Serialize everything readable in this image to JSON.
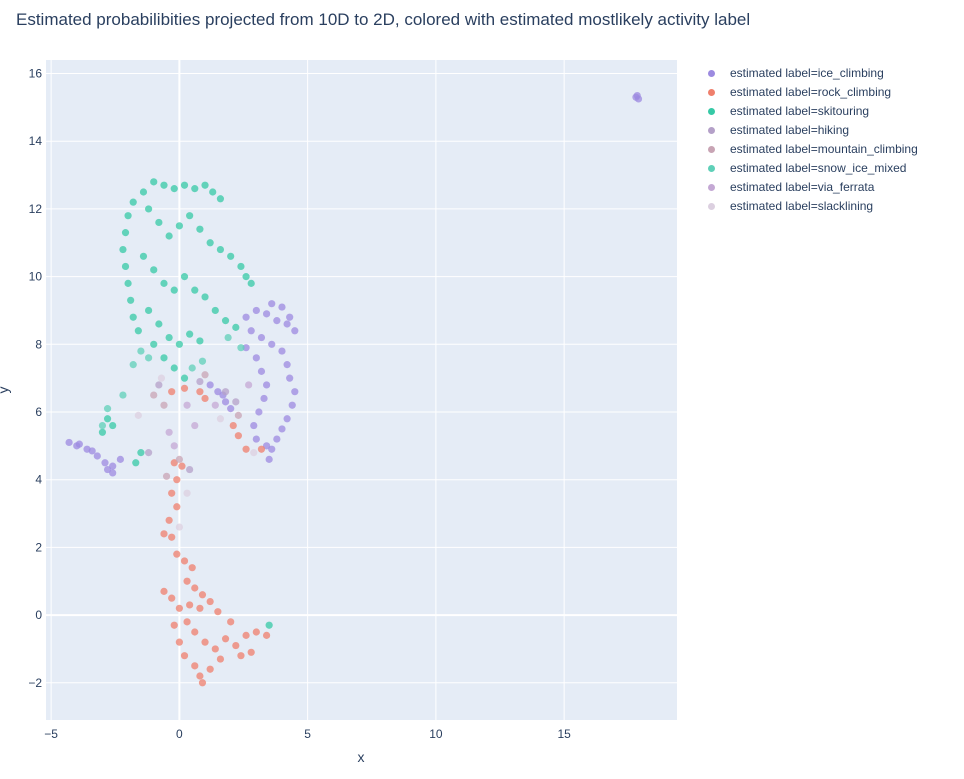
{
  "chart_data": {
    "type": "scatter",
    "title": "Estimated probabilibities projected from 10D to 2D, colored with estimated mostlikely activity label",
    "xlabel": "x",
    "ylabel": "y",
    "xlim": [
      -5.2,
      19.4
    ],
    "ylim": [
      -3.1,
      16.4
    ],
    "xticks": [
      -5,
      0,
      5,
      10,
      15
    ],
    "yticks": [
      -2,
      0,
      2,
      4,
      6,
      8,
      10,
      12,
      14,
      16
    ],
    "grid": true,
    "legend_position": "right",
    "series": [
      {
        "name": "estimated label=ice_climbing",
        "color": "#9c8ae0",
        "points": [
          [
            17.8,
            15.3
          ],
          [
            17.9,
            15.25
          ],
          [
            17.85,
            15.35
          ],
          [
            -4.3,
            5.1
          ],
          [
            -4.0,
            5.0
          ],
          [
            -3.6,
            4.9
          ],
          [
            -3.2,
            4.7
          ],
          [
            -2.9,
            4.5
          ],
          [
            -2.6,
            4.4
          ],
          [
            -2.3,
            4.6
          ],
          [
            -2.6,
            4.2
          ],
          [
            -2.8,
            4.3
          ],
          [
            -3.9,
            5.05
          ],
          [
            -3.4,
            4.85
          ],
          [
            1.2,
            6.8
          ],
          [
            1.5,
            6.6
          ],
          [
            1.8,
            6.3
          ],
          [
            2.0,
            6.1
          ],
          [
            1.7,
            6.5
          ],
          [
            2.6,
            8.8
          ],
          [
            3.0,
            9.0
          ],
          [
            3.4,
            8.9
          ],
          [
            3.8,
            8.7
          ],
          [
            4.2,
            8.6
          ],
          [
            4.5,
            8.4
          ],
          [
            4.3,
            8.8
          ],
          [
            4.0,
            9.1
          ],
          [
            3.6,
            9.2
          ],
          [
            3.2,
            8.2
          ],
          [
            3.6,
            8.0
          ],
          [
            4.0,
            7.8
          ],
          [
            4.2,
            7.4
          ],
          [
            4.3,
            7.0
          ],
          [
            4.5,
            6.6
          ],
          [
            4.4,
            6.2
          ],
          [
            4.2,
            5.8
          ],
          [
            4.0,
            5.5
          ],
          [
            3.8,
            5.2
          ],
          [
            3.6,
            4.9
          ],
          [
            3.5,
            4.6
          ],
          [
            3.0,
            7.6
          ],
          [
            3.2,
            7.2
          ],
          [
            3.4,
            6.8
          ],
          [
            3.3,
            6.4
          ],
          [
            3.1,
            6.0
          ],
          [
            2.9,
            5.6
          ],
          [
            3.0,
            5.2
          ],
          [
            3.4,
            5.0
          ],
          [
            2.8,
            8.4
          ],
          [
            2.6,
            7.9
          ]
        ]
      },
      {
        "name": "estimated label=rock_climbing",
        "color": "#ef7f6c",
        "points": [
          [
            -0.2,
            4.5
          ],
          [
            0.1,
            4.4
          ],
          [
            -0.1,
            4.0
          ],
          [
            -0.3,
            3.6
          ],
          [
            -0.1,
            3.2
          ],
          [
            -0.4,
            2.8
          ],
          [
            -0.6,
            2.4
          ],
          [
            -0.3,
            2.3
          ],
          [
            -0.1,
            1.8
          ],
          [
            0.2,
            1.6
          ],
          [
            0.5,
            1.4
          ],
          [
            0.3,
            1.0
          ],
          [
            0.6,
            0.8
          ],
          [
            0.9,
            0.6
          ],
          [
            1.2,
            0.4
          ],
          [
            0.8,
            0.2
          ],
          [
            0.4,
            0.3
          ],
          [
            -0.6,
            0.7
          ],
          [
            -0.3,
            0.5
          ],
          [
            0.0,
            0.2
          ],
          [
            0.3,
            -0.2
          ],
          [
            0.6,
            -0.5
          ],
          [
            1.0,
            -0.8
          ],
          [
            1.4,
            -1.0
          ],
          [
            1.8,
            -0.7
          ],
          [
            2.2,
            -0.9
          ],
          [
            2.6,
            -0.6
          ],
          [
            3.0,
            -0.5
          ],
          [
            3.4,
            -0.6
          ],
          [
            1.6,
            -1.3
          ],
          [
            1.2,
            -1.6
          ],
          [
            0.8,
            -1.8
          ],
          [
            0.6,
            -1.5
          ],
          [
            0.9,
            -2.0
          ],
          [
            0.2,
            -1.2
          ],
          [
            0.0,
            -0.8
          ],
          [
            -0.2,
            -0.3
          ],
          [
            1.5,
            0.1
          ],
          [
            2.0,
            -0.2
          ],
          [
            2.4,
            -1.2
          ],
          [
            2.8,
            -1.1
          ],
          [
            -0.3,
            6.6
          ],
          [
            0.2,
            6.7
          ],
          [
            0.8,
            6.6
          ],
          [
            1.0,
            6.4
          ],
          [
            2.1,
            5.6
          ],
          [
            2.3,
            5.3
          ],
          [
            2.6,
            4.9
          ],
          [
            3.2,
            4.9
          ]
        ]
      },
      {
        "name": "estimated label=skitouring",
        "color": "#36c9a6",
        "points": [
          [
            -1.0,
            12.8
          ],
          [
            -0.6,
            12.7
          ],
          [
            -0.2,
            12.6
          ],
          [
            0.2,
            12.7
          ],
          [
            0.6,
            12.6
          ],
          [
            1.0,
            12.7
          ],
          [
            1.3,
            12.5
          ],
          [
            1.6,
            12.3
          ],
          [
            -1.4,
            12.5
          ],
          [
            -1.8,
            12.2
          ],
          [
            -2.0,
            11.8
          ],
          [
            -2.1,
            11.3
          ],
          [
            -2.2,
            10.8
          ],
          [
            -2.1,
            10.3
          ],
          [
            -2.0,
            9.8
          ],
          [
            -1.9,
            9.3
          ],
          [
            -1.8,
            8.8
          ],
          [
            -1.6,
            8.4
          ],
          [
            -1.2,
            12.0
          ],
          [
            -0.8,
            11.6
          ],
          [
            -0.4,
            11.2
          ],
          [
            0.0,
            11.5
          ],
          [
            0.4,
            11.8
          ],
          [
            0.8,
            11.4
          ],
          [
            1.2,
            11.0
          ],
          [
            1.6,
            10.8
          ],
          [
            2.0,
            10.6
          ],
          [
            2.4,
            10.3
          ],
          [
            2.6,
            10.0
          ],
          [
            2.8,
            9.8
          ],
          [
            -1.4,
            10.6
          ],
          [
            -1.0,
            10.2
          ],
          [
            -0.6,
            9.8
          ],
          [
            -0.2,
            9.6
          ],
          [
            0.2,
            10.0
          ],
          [
            0.6,
            9.6
          ],
          [
            1.0,
            9.4
          ],
          [
            1.4,
            9.0
          ],
          [
            1.8,
            8.7
          ],
          [
            2.2,
            8.5
          ],
          [
            -1.2,
            9.0
          ],
          [
            -0.8,
            8.6
          ],
          [
            -0.4,
            8.2
          ],
          [
            0.0,
            8.0
          ],
          [
            0.4,
            8.3
          ],
          [
            0.8,
            8.1
          ],
          [
            -1.0,
            8.0
          ],
          [
            -0.6,
            7.6
          ],
          [
            -0.2,
            7.3
          ],
          [
            0.2,
            7.0
          ],
          [
            -2.6,
            5.6
          ],
          [
            -3.0,
            5.4
          ],
          [
            -2.8,
            5.8
          ],
          [
            -1.5,
            4.8
          ],
          [
            -1.7,
            4.5
          ],
          [
            3.5,
            -0.3
          ]
        ]
      },
      {
        "name": "estimated label=hiking",
        "color": "#b4a0c8",
        "points": [
          [
            1.8,
            6.6
          ],
          [
            2.2,
            6.3
          ],
          [
            0.8,
            6.9
          ],
          [
            -0.8,
            6.8
          ],
          [
            0.4,
            4.3
          ],
          [
            -1.2,
            4.8
          ]
        ]
      },
      {
        "name": "estimated label=mountain_climbing",
        "color": "#c8a4b4",
        "points": [
          [
            -1.0,
            6.5
          ],
          [
            -0.6,
            6.2
          ],
          [
            0.0,
            4.6
          ],
          [
            -0.5,
            4.1
          ],
          [
            2.3,
            5.9
          ],
          [
            1.0,
            7.1
          ]
        ]
      },
      {
        "name": "estimated label=snow_ice_mixed",
        "color": "#5fd0b8",
        "points": [
          [
            -1.5,
            7.8
          ],
          [
            -1.8,
            7.4
          ],
          [
            -1.2,
            7.6
          ],
          [
            0.5,
            7.3
          ],
          [
            0.9,
            7.5
          ],
          [
            -2.2,
            6.5
          ],
          [
            -2.8,
            6.1
          ],
          [
            -3.0,
            5.6
          ],
          [
            1.9,
            8.2
          ],
          [
            2.4,
            7.9
          ]
        ]
      },
      {
        "name": "estimated label=via_ferrata",
        "color": "#c4a8d4",
        "points": [
          [
            0.3,
            6.2
          ],
          [
            1.4,
            6.2
          ],
          [
            -0.2,
            5.0
          ],
          [
            2.7,
            6.8
          ],
          [
            0.6,
            5.6
          ],
          [
            -0.4,
            5.4
          ]
        ]
      },
      {
        "name": "estimated label=slacklining",
        "color": "#dcd0e0",
        "points": [
          [
            -0.7,
            7.0
          ],
          [
            0.3,
            3.6
          ],
          [
            1.6,
            5.8
          ],
          [
            -1.6,
            5.9
          ],
          [
            2.9,
            4.8
          ],
          [
            0.0,
            2.6
          ]
        ]
      }
    ]
  }
}
